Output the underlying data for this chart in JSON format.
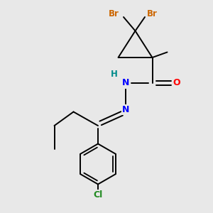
{
  "background_color": "#e8e8e8",
  "bond_color": "#000000",
  "atom_colors": {
    "Br": "#cc6600",
    "Cl": "#228b22",
    "N": "#0000ff",
    "O": "#ff0000",
    "H": "#008b8b",
    "C": "#000000"
  },
  "figsize": [
    3.0,
    3.0
  ],
  "dpi": 100,
  "lw": 1.4,
  "fontsize": 8.5
}
